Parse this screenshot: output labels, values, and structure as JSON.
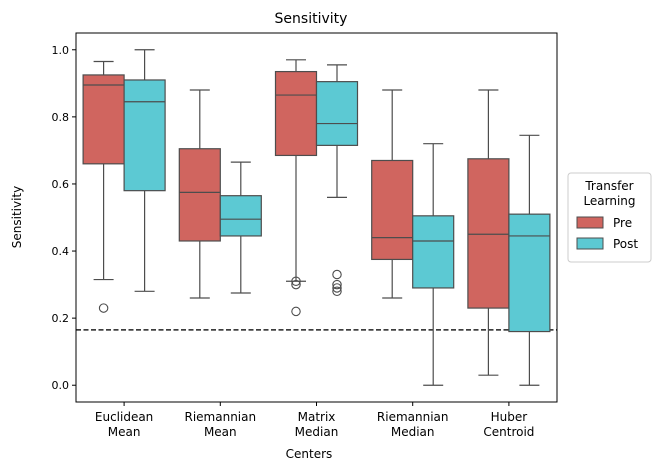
{
  "chart_data": {
    "type": "box",
    "title": "Sensitivity",
    "xlabel": "Centers",
    "ylabel": "Sensitivity",
    "ylim": [
      -0.05,
      1.05
    ],
    "yticks": [
      0.0,
      0.2,
      0.4,
      0.6,
      0.8,
      1.0
    ],
    "ytick_labels": [
      "0.0",
      "0.2",
      "0.4",
      "0.6",
      "0.8",
      "1.0"
    ],
    "categories": [
      [
        "Euclidean",
        "Mean"
      ],
      [
        "Riemannian",
        "Mean"
      ],
      [
        "Matrix",
        "Median"
      ],
      [
        "Riemannian",
        "Median"
      ],
      [
        "Huber",
        "Centroid"
      ]
    ],
    "reference_line": {
      "y": 0.165,
      "style": "dashed"
    },
    "legend": {
      "title": [
        "Transfer",
        "Learning"
      ],
      "placement": "outside-right"
    },
    "series": [
      {
        "name": "Pre",
        "color": "#d0655f",
        "boxes": [
          {
            "whisker_low": 0.315,
            "q1": 0.66,
            "median": 0.895,
            "q3": 0.925,
            "whisker_high": 0.965,
            "outliers": [
              0.23
            ]
          },
          {
            "whisker_low": 0.26,
            "q1": 0.43,
            "median": 0.575,
            "q3": 0.705,
            "whisker_high": 0.88,
            "outliers": []
          },
          {
            "whisker_low": 0.31,
            "q1": 0.685,
            "median": 0.865,
            "q3": 0.935,
            "whisker_high": 0.97,
            "outliers": [
              0.31,
              0.3,
              0.22
            ]
          },
          {
            "whisker_low": 0.26,
            "q1": 0.375,
            "median": 0.44,
            "q3": 0.67,
            "whisker_high": 0.88,
            "outliers": []
          },
          {
            "whisker_low": 0.03,
            "q1": 0.23,
            "median": 0.45,
            "q3": 0.675,
            "whisker_high": 0.88,
            "outliers": []
          }
        ]
      },
      {
        "name": "Post",
        "color": "#5cc9d3",
        "boxes": [
          {
            "whisker_low": 0.28,
            "q1": 0.58,
            "median": 0.845,
            "q3": 0.91,
            "whisker_high": 1.0,
            "outliers": []
          },
          {
            "whisker_low": 0.275,
            "q1": 0.445,
            "median": 0.495,
            "q3": 0.565,
            "whisker_high": 0.665,
            "outliers": []
          },
          {
            "whisker_low": 0.56,
            "q1": 0.715,
            "median": 0.78,
            "q3": 0.905,
            "whisker_high": 0.955,
            "outliers": [
              0.33,
              0.3,
              0.29,
              0.28
            ]
          },
          {
            "whisker_low": 0.0,
            "q1": 0.29,
            "median": 0.43,
            "q3": 0.505,
            "whisker_high": 0.72,
            "outliers": []
          },
          {
            "whisker_low": 0.0,
            "q1": 0.16,
            "median": 0.445,
            "q3": 0.51,
            "whisker_high": 0.745,
            "outliers": []
          }
        ]
      }
    ]
  }
}
